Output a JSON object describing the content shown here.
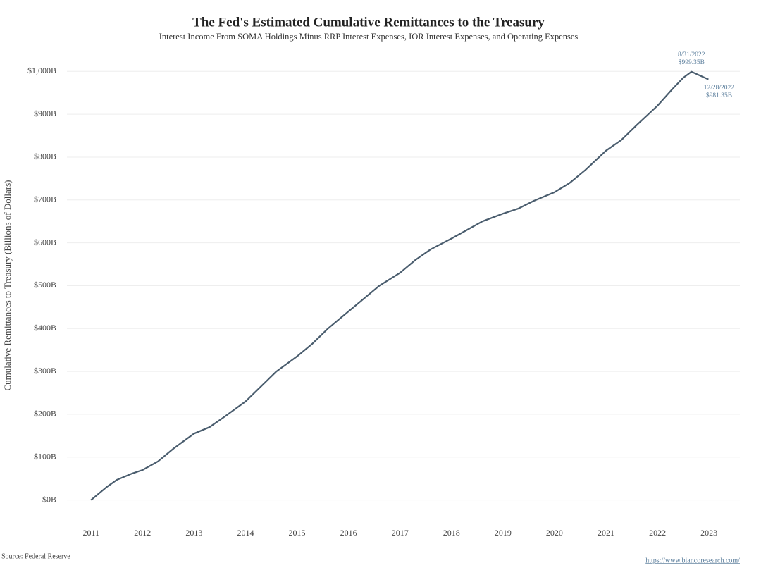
{
  "chart_data": {
    "type": "line",
    "title": "The Fed's Estimated Cumulative Remittances to the Treasury",
    "subtitle": "Interest Income From SOMA Holdings Minus RRP Interest Expenses, IOR Interest Expenses, and Operating Expenses",
    "y_label": "Cumulative Remittances to Treasury (Billions of Dollars)",
    "source": "Source: Federal Reserve",
    "url": "https://www.biancoresearch.com/",
    "annotations": [
      {
        "date": "8/31/2022",
        "text": "$999.35B",
        "x": 2022.66,
        "y": 999.35
      },
      {
        "date": "12/28/2022",
        "text": "$981.35B",
        "x": 2022.99,
        "y": 981.35
      }
    ],
    "x": [
      2011.0,
      2011.3,
      2011.5,
      2011.8,
      2012.0,
      2012.3,
      2012.6,
      2013.0,
      2013.3,
      2013.6,
      2014.0,
      2014.3,
      2014.6,
      2015.0,
      2015.3,
      2015.6,
      2016.0,
      2016.3,
      2016.6,
      2017.0,
      2017.3,
      2017.6,
      2018.0,
      2018.3,
      2018.6,
      2019.0,
      2019.3,
      2019.6,
      2020.0,
      2020.3,
      2020.6,
      2021.0,
      2021.3,
      2021.6,
      2022.0,
      2022.3,
      2022.5,
      2022.66,
      2022.99
    ],
    "series": [
      {
        "name": "Cumulative Remittances",
        "color": "#4a5d6e",
        "values": [
          0,
          30,
          47,
          62,
          70,
          90,
          120,
          155,
          170,
          195,
          230,
          265,
          300,
          335,
          365,
          400,
          440,
          470,
          500,
          530,
          560,
          585,
          610,
          630,
          650,
          668,
          680,
          698,
          718,
          740,
          770,
          815,
          840,
          875,
          920,
          960,
          985,
          999.35,
          981.35
        ]
      }
    ],
    "xlim": [
      2010.6,
      2023.6
    ],
    "xticks": [
      2011,
      2012,
      2013,
      2014,
      2015,
      2016,
      2017,
      2018,
      2019,
      2020,
      2021,
      2022,
      2023
    ],
    "ylim": [
      -50,
      1035
    ],
    "yticks": [
      {
        "value": 0,
        "label": "$0B"
      },
      {
        "value": 100,
        "label": "$100B"
      },
      {
        "value": 200,
        "label": "$200B"
      },
      {
        "value": 300,
        "label": "$300B"
      },
      {
        "value": 400,
        "label": "$400B"
      },
      {
        "value": 500,
        "label": "$500B"
      },
      {
        "value": 600,
        "label": "$600B"
      },
      {
        "value": 700,
        "label": "$700B"
      },
      {
        "value": 800,
        "label": "$800B"
      },
      {
        "value": 900,
        "label": "$900B"
      },
      {
        "value": 1000,
        "label": "$1,000B"
      }
    ],
    "grid": true
  }
}
